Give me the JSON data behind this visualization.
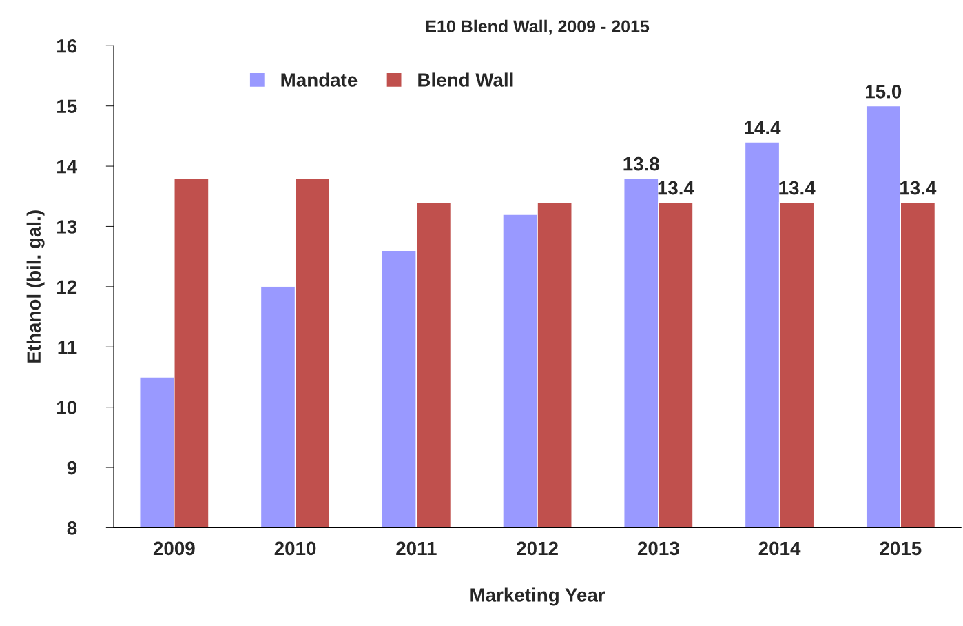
{
  "chart_data": {
    "type": "bar",
    "title": "E10 Blend Wall, 2009 - 2015",
    "xlabel": "Marketing Year",
    "ylabel": "Ethanol (bil. gal.)",
    "categories": [
      "2009",
      "2010",
      "2011",
      "2012",
      "2013",
      "2014",
      "2015"
    ],
    "series": [
      {
        "name": "Mandate",
        "color": "#9999ff",
        "values": [
          10.5,
          12.0,
          12.6,
          13.2,
          13.8,
          14.4,
          15.0
        ],
        "value_labels": [
          null,
          null,
          null,
          null,
          "13.8",
          "14.4",
          "15.0"
        ]
      },
      {
        "name": "Blend Wall",
        "color": "#c0504d",
        "values": [
          13.8,
          13.8,
          13.4,
          13.4,
          13.4,
          13.4,
          13.4
        ],
        "value_labels": [
          null,
          null,
          null,
          null,
          "13.4",
          "13.4",
          "13.4"
        ]
      }
    ],
    "ylim": [
      8,
      16
    ],
    "yticks": [
      8,
      9,
      10,
      11,
      12,
      13,
      14,
      15,
      16
    ],
    "grid": false,
    "legend": "top left"
  }
}
